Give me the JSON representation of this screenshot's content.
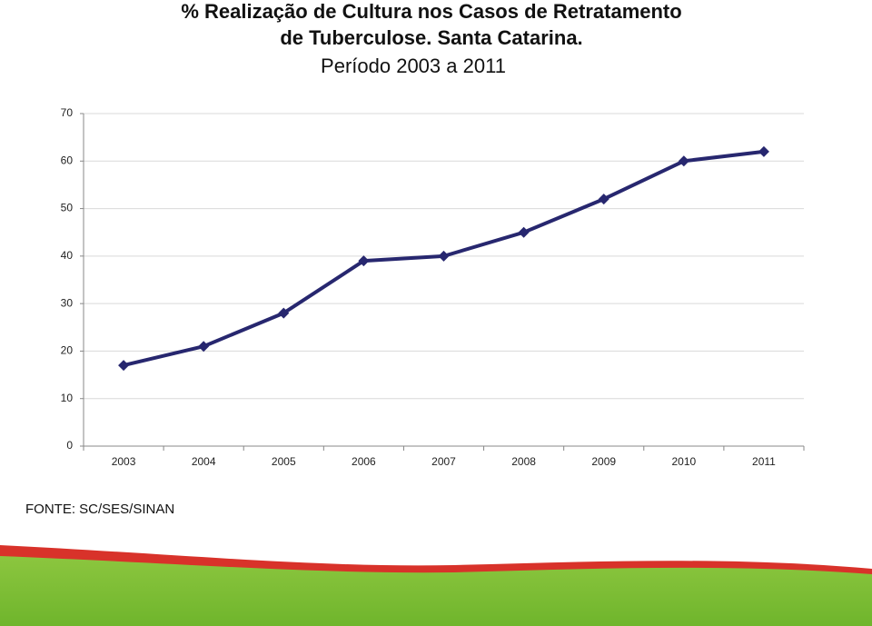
{
  "chart_data": {
    "type": "line",
    "title": [
      "% Realização de Cultura nos Casos de Retratamento",
      "de Tuberculose. Santa Catarina.",
      "Período 2003 a 2011"
    ],
    "categories": [
      "2003",
      "2004",
      "2005",
      "2006",
      "2007",
      "2008",
      "2009",
      "2010",
      "2011"
    ],
    "values": [
      17,
      21,
      28,
      39,
      40,
      45,
      52,
      60,
      62
    ],
    "color": "#27276f",
    "ylim": [
      0,
      70
    ],
    "yticks": [
      0,
      10,
      20,
      30,
      40,
      50,
      60,
      70
    ],
    "grid": true,
    "source": "FONTE: SC/SES/SINAN"
  }
}
